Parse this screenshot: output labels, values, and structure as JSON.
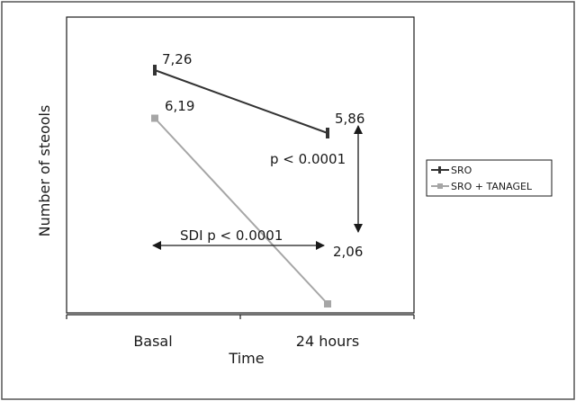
{
  "chart_data": {
    "type": "line",
    "categories": [
      "Basal",
      "24 hours"
    ],
    "xlabel": "Time",
    "ylabel": "Number of steools",
    "ylim": [
      0,
      8
    ],
    "grid": false,
    "legend_position": "right, outside plot",
    "series": [
      {
        "name": "SRO",
        "values": [
          7.26,
          5.86
        ],
        "data_labels": [
          "7,26",
          "5,86"
        ],
        "color": "#333333",
        "marker": "vertical-bar"
      },
      {
        "name": "SRO + TANAGEL",
        "values": [
          6.19,
          2.06
        ],
        "data_labels": [
          "6,19",
          "2,06"
        ],
        "color": "#a6a6a6",
        "marker": "square"
      }
    ],
    "annotations": [
      {
        "text": "p < 0.0001",
        "kind": "vertical-double-arrow",
        "at": "24 hours",
        "between": [
          5.86,
          2.06
        ]
      },
      {
        "text": "SDI p < 0.0001",
        "kind": "horizontal-double-arrow",
        "at_value": 2.06,
        "between": [
          "Basal",
          "24 hours"
        ]
      }
    ]
  },
  "colors": {
    "frame": "#555555",
    "axis": "#1a1a1a",
    "arrow": "#1a1a1a",
    "plot_background": "#ffffff"
  }
}
